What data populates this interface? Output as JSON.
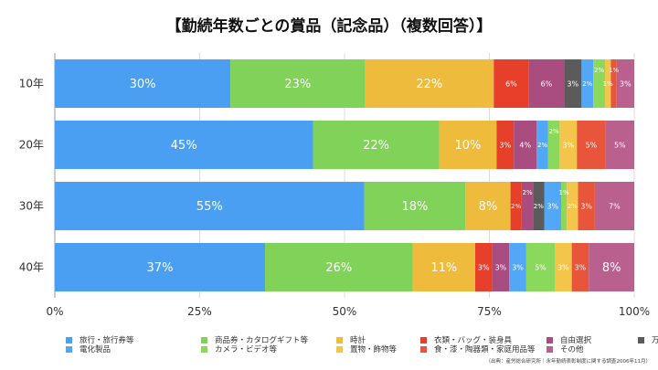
{
  "chart_data": {
    "type": "bar",
    "orientation": "horizontal",
    "stacked": true,
    "title": "【勤続年数ごとの賞品（記念品）（複数回答）】",
    "categories": [
      "10年",
      "20年",
      "30年",
      "40年"
    ],
    "xlim": [
      0,
      100
    ],
    "xticks": [
      "0%",
      "25%",
      "50%",
      "75%",
      "100%"
    ],
    "grid": true,
    "legend_position": "bottom",
    "series": [
      {
        "name": "旅行・旅行券等",
        "color": "#4a9ff2",
        "values": [
          30,
          45,
          55,
          37
        ]
      },
      {
        "name": "商品券・カタログギフト等",
        "color": "#80d259",
        "values": [
          23,
          22,
          18,
          26
        ]
      },
      {
        "name": "時計",
        "color": "#efbb3c",
        "values": [
          22,
          10,
          8,
          11
        ]
      },
      {
        "name": "衣類・バッグ・装身具",
        "color": "#e6402b",
        "values": [
          6,
          3,
          2,
          3
        ]
      },
      {
        "name": "自由選択",
        "color": "#a94c80",
        "values": [
          6,
          4,
          2,
          3
        ]
      },
      {
        "name": "万年筆・文房具類",
        "color": "#5b5b5b",
        "values": [
          3,
          0,
          2,
          0
        ]
      },
      {
        "name": "電化製品",
        "color": "#52a8f7",
        "values": [
          2,
          2,
          3,
          3
        ]
      },
      {
        "name": "カメラ・ビデオ等",
        "color": "#8ad95d",
        "values": [
          2,
          2,
          1,
          5
        ]
      },
      {
        "name": "置物・飾物等",
        "color": "#f3c64b",
        "values": [
          1,
          3,
          2,
          3
        ]
      },
      {
        "name": "食・漆・陶器類・家庭用品等",
        "color": "#e9553a",
        "values": [
          1,
          5,
          3,
          3
        ]
      },
      {
        "name": "その他",
        "color": "#b9608f",
        "values": [
          3,
          5,
          7,
          8
        ]
      }
    ],
    "legend_order": [
      0,
      1,
      2,
      3,
      4,
      5,
      6,
      7,
      8,
      9,
      10
    ],
    "source": "（出典：産労総合研究所｜永年勤続表彰制度に関する調査2006年11月）"
  }
}
